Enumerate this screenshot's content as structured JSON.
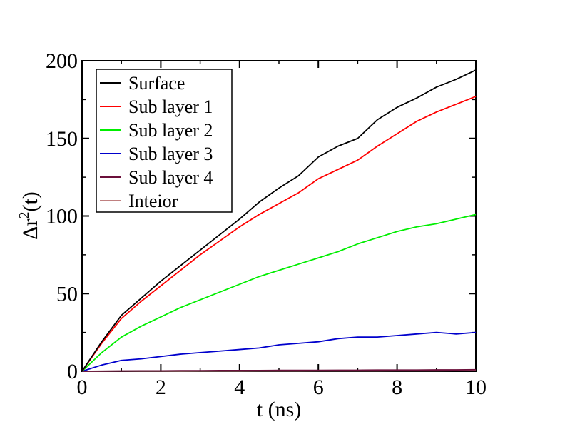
{
  "chart_data": {
    "type": "line",
    "title": "",
    "xlabel": "t (ns)",
    "ylabel": {
      "base": "Δr",
      "sup": "2",
      "tail": "(t)"
    },
    "xlim": [
      0,
      10
    ],
    "ylim": [
      0,
      200
    ],
    "xticks": [
      "0",
      "2",
      "4",
      "6",
      "8",
      "10"
    ],
    "yticks": [
      "0",
      "50",
      "100",
      "150",
      "200"
    ],
    "grid": false,
    "legend_position": "top-left",
    "x": [
      0,
      0.5,
      1,
      1.5,
      2,
      2.5,
      3,
      3.5,
      4,
      4.5,
      5,
      5.5,
      6,
      6.5,
      7,
      7.5,
      8,
      8.5,
      9,
      9.5,
      10
    ],
    "series": [
      {
        "name": "Surface",
        "color": "#000000",
        "values": [
          0,
          19,
          36,
          47,
          58,
          68,
          78,
          88,
          98,
          109,
          118,
          126,
          138,
          145,
          150,
          162,
          170,
          176,
          183,
          188,
          194
        ]
      },
      {
        "name": "Sub layer 1",
        "color": "#ff0000",
        "values": [
          0,
          18,
          34,
          45,
          55,
          65,
          75,
          84,
          93,
          101,
          108,
          115,
          124,
          130,
          136,
          145,
          153,
          161,
          167,
          172,
          177
        ]
      },
      {
        "name": "Sub layer 2",
        "color": "#00ee00",
        "values": [
          0,
          12,
          22,
          29,
          35,
          41,
          46,
          51,
          56,
          61,
          65,
          69,
          73,
          77,
          82,
          86,
          90,
          93,
          95,
          98,
          101
        ]
      },
      {
        "name": "Sub layer 3",
        "color": "#0000cc",
        "values": [
          0,
          4,
          7,
          8,
          9.5,
          11,
          12,
          13,
          14,
          15,
          17,
          18,
          19,
          21,
          22,
          22,
          23,
          24,
          25,
          24,
          25
        ]
      },
      {
        "name": "Sub layer 4",
        "color": "#6b0f3a",
        "values": [
          0,
          0.1,
          0.2,
          0.3,
          0.3,
          0.4,
          0.4,
          0.5,
          0.5,
          0.5,
          0.6,
          0.6,
          0.6,
          0.7,
          0.7,
          0.8,
          0.8,
          0.8,
          0.9,
          0.9,
          1.0
        ]
      },
      {
        "name": "Inteior",
        "color": "#c08080",
        "values": [
          0,
          0.05,
          0.1,
          0.1,
          0.15,
          0.15,
          0.2,
          0.2,
          0.2,
          0.25,
          0.25,
          0.25,
          0.3,
          0.3,
          0.3,
          0.3,
          0.35,
          0.35,
          0.35,
          0.4,
          0.4
        ]
      }
    ]
  }
}
